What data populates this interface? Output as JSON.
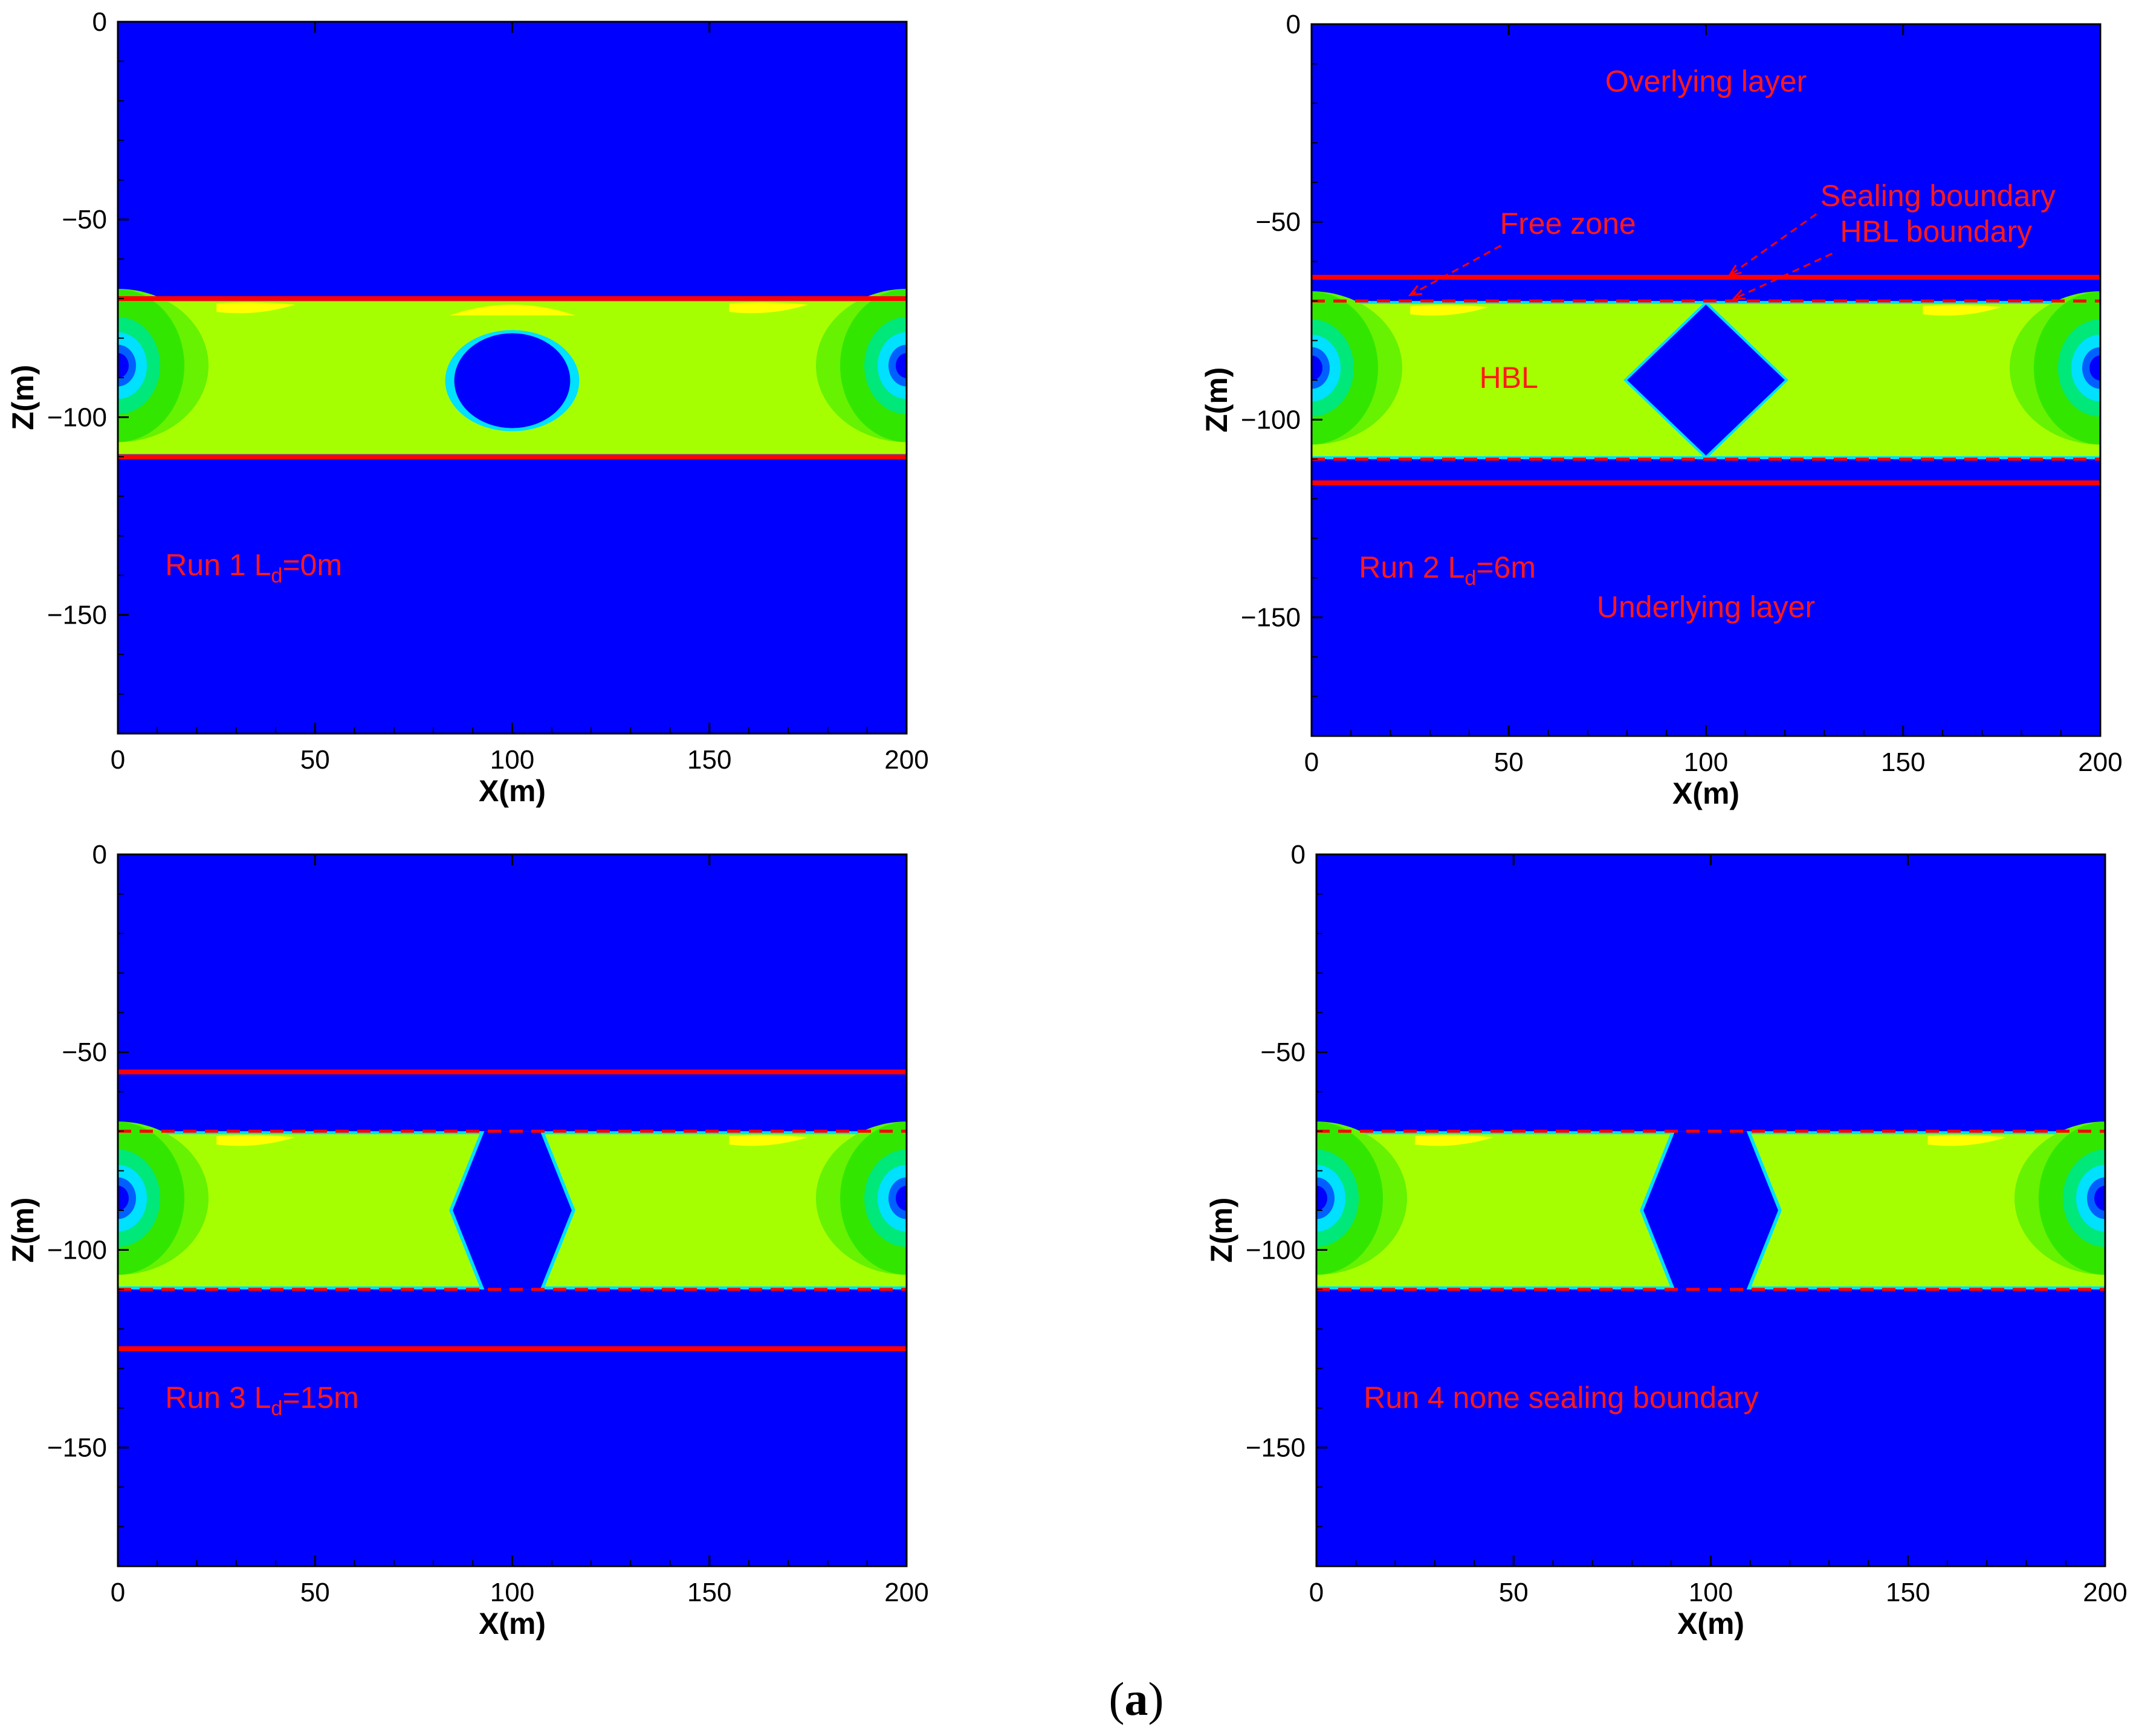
{
  "figure": {
    "caption_open": "(",
    "caption_letter": "a",
    "caption_close": ")"
  },
  "colors": {
    "background": "#0000ff",
    "hbl": "#a6ff00",
    "green": "#33e600",
    "cyan": "#00e0ff",
    "yellow": "#ffff00",
    "boundary": "#ff0000",
    "annotation": "#ff1a1a"
  },
  "chart_data": [
    {
      "type": "heatmap",
      "panel": "run1",
      "xlabel": "X(m)",
      "ylabel": "Z(m)",
      "xlim": [
        0,
        200
      ],
      "ylim": [
        -180,
        0
      ],
      "xticks": [
        0,
        50,
        100,
        150,
        200
      ],
      "yticks": [
        0,
        -50,
        -100,
        -150
      ],
      "hbl_layer_z": [
        -70,
        -110
      ],
      "sealing_boundary_z": [
        -70,
        -110
      ],
      "sealing_style": "solid",
      "hbl_boundary_z": [],
      "dissociation_zone": "ellipse around X=100, Z=-78 to -102",
      "label_main": "Run 1  L",
      "label_sub": "d",
      "label_rest": "=0m",
      "annotations": []
    },
    {
      "type": "heatmap",
      "panel": "run2",
      "xlabel": "X(m)",
      "ylabel": "Z(m)",
      "xlim": [
        0,
        200
      ],
      "ylim": [
        -180,
        0
      ],
      "xticks": [
        0,
        50,
        100,
        150,
        200
      ],
      "yticks": [
        0,
        -50,
        -100,
        -150
      ],
      "hbl_layer_z": [
        -70,
        -110
      ],
      "sealing_boundary_z": [
        -64,
        -116
      ],
      "sealing_style": "solid",
      "hbl_boundary_z": [
        -70,
        -110
      ],
      "dissociation_zone": "diamond around X=100, Z=-70 to -110",
      "label_main": "Run 2  L",
      "label_sub": "d",
      "label_rest": "=6m",
      "annotations": [
        {
          "key": "overlying",
          "text": "Overlying layer"
        },
        {
          "key": "free_zone",
          "text": "Free zone"
        },
        {
          "key": "sealing",
          "text": "Sealing boundary"
        },
        {
          "key": "hbl_boundary",
          "text": "HBL boundary"
        },
        {
          "key": "hbl",
          "text": "HBL"
        },
        {
          "key": "underlying",
          "text": "Underlying layer"
        }
      ]
    },
    {
      "type": "heatmap",
      "panel": "run3",
      "xlabel": "X(m)",
      "ylabel": "Z(m)",
      "xlim": [
        0,
        200
      ],
      "ylim": [
        -180,
        0
      ],
      "xticks": [
        0,
        50,
        100,
        150,
        200
      ],
      "yticks": [
        0,
        -50,
        -100,
        -150
      ],
      "hbl_layer_z": [
        -70,
        -110
      ],
      "sealing_boundary_z": [
        -55,
        -125
      ],
      "sealing_style": "solid",
      "hbl_boundary_z": [
        -70,
        -110
      ],
      "dissociation_zone": "split channel X=92 to 108",
      "label_main": "Run 3  L",
      "label_sub": "d",
      "label_rest": "=15m",
      "annotations": []
    },
    {
      "type": "heatmap",
      "panel": "run4",
      "xlabel": "X(m)",
      "ylabel": "Z(m)",
      "xlim": [
        0,
        200
      ],
      "ylim": [
        -180,
        0
      ],
      "xticks": [
        0,
        50,
        100,
        150,
        200
      ],
      "yticks": [
        0,
        -50,
        -100,
        -150
      ],
      "hbl_layer_z": [
        -70,
        -110
      ],
      "sealing_boundary_z": [],
      "sealing_style": "none",
      "hbl_boundary_z": [
        -70,
        -110
      ],
      "dissociation_zone": "split channel X=90 to 110",
      "label_main": "Run 4  none sealing boundary",
      "label_sub": "",
      "label_rest": "",
      "annotations": []
    }
  ]
}
